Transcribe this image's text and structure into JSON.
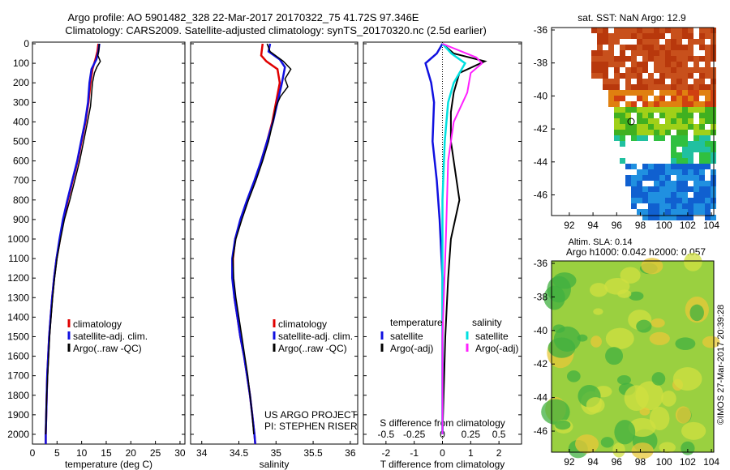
{
  "header": {
    "line1": "Argo profile: AO 5901482_328 22-Mar-2017 20170322_75 41.72S 97.346E",
    "line2": "Climatology: CARS2009. Satellite-adjusted climatology: synTS_20170320.nc (2.5d earlier)"
  },
  "colors": {
    "climatology": "#e00000",
    "satellite": "#1010e0",
    "argo": "#000000",
    "sal_satellite": "#00e0e0",
    "sal_argo": "#ff20ff"
  },
  "chart_data": [
    {
      "type": "line",
      "panel": "temperature",
      "xlabel": "temperature (deg C)",
      "xlim": [
        0,
        31
      ],
      "xticks": [
        "0",
        "5",
        "10",
        "15",
        "20",
        "25",
        "30"
      ],
      "ylim": [
        2050,
        0
      ],
      "yticks": [
        "0",
        "100",
        "200",
        "300",
        "400",
        "500",
        "600",
        "700",
        "800",
        "900",
        "1000",
        "1100",
        "1200",
        "1300",
        "1400",
        "1500",
        "1600",
        "1700",
        "1800",
        "1900",
        "2000"
      ],
      "legend": [
        "climatology",
        "satellite-adj. clim.",
        "Argo(..raw -QC)"
      ],
      "series": [
        {
          "name": "climatology",
          "points": [
            [
              13.4,
              0
            ],
            [
              13.2,
              40
            ],
            [
              12.8,
              80
            ],
            [
              12.2,
              130
            ],
            [
              11.8,
              200
            ],
            [
              11.4,
              300
            ],
            [
              10.8,
              400
            ],
            [
              10.0,
              500
            ],
            [
              9.2,
              600
            ],
            [
              8.2,
              700
            ],
            [
              7.2,
              800
            ],
            [
              6.3,
              900
            ],
            [
              5.6,
              1000
            ],
            [
              4.9,
              1100
            ],
            [
              4.4,
              1200
            ],
            [
              4.0,
              1300
            ],
            [
              3.7,
              1400
            ],
            [
              3.4,
              1500
            ],
            [
              3.2,
              1600
            ],
            [
              3.0,
              1700
            ],
            [
              2.9,
              1800
            ],
            [
              2.8,
              1900
            ],
            [
              2.7,
              2000
            ],
            [
              2.7,
              2050
            ]
          ]
        },
        {
          "name": "satellite-adj. clim.",
          "points": [
            [
              13.6,
              0
            ],
            [
              13.4,
              40
            ],
            [
              13.0,
              80
            ],
            [
              12.0,
              130
            ],
            [
              11.6,
              200
            ],
            [
              11.3,
              300
            ],
            [
              10.7,
              400
            ],
            [
              9.9,
              500
            ],
            [
              9.1,
              600
            ],
            [
              8.1,
              700
            ],
            [
              7.1,
              800
            ],
            [
              6.2,
              900
            ],
            [
              5.5,
              1000
            ],
            [
              4.9,
              1100
            ],
            [
              4.4,
              1200
            ],
            [
              4.0,
              1300
            ],
            [
              3.7,
              1400
            ],
            [
              3.4,
              1500
            ],
            [
              3.2,
              1600
            ],
            [
              3.0,
              1700
            ],
            [
              2.9,
              1800
            ],
            [
              2.8,
              1900
            ],
            [
              2.7,
              2000
            ],
            [
              2.7,
              2050
            ]
          ]
        },
        {
          "name": "Argo(..raw -QC)",
          "points": [
            [
              13.6,
              0
            ],
            [
              13.5,
              30
            ],
            [
              13.3,
              60
            ],
            [
              13.8,
              90
            ],
            [
              13.1,
              120
            ],
            [
              12.6,
              150
            ],
            [
              12.2,
              200
            ],
            [
              12.0,
              260
            ],
            [
              11.8,
              320
            ],
            [
              11.2,
              400
            ],
            [
              10.4,
              500
            ],
            [
              9.6,
              600
            ],
            [
              8.6,
              700
            ],
            [
              7.6,
              800
            ],
            [
              6.5,
              900
            ],
            [
              5.7,
              1000
            ],
            [
              5.0,
              1100
            ],
            [
              4.5,
              1200
            ],
            [
              4.1,
              1300
            ],
            [
              3.8,
              1400
            ],
            [
              3.5,
              1500
            ],
            [
              3.3,
              1600
            ],
            [
              3.1,
              1700
            ],
            [
              2.9,
              1800
            ],
            [
              2.8,
              1900
            ],
            [
              2.7,
              2000
            ]
          ]
        }
      ]
    },
    {
      "type": "line",
      "panel": "salinity",
      "xlabel": "salinity",
      "xlim": [
        33.85,
        36.1
      ],
      "xticks": [
        "34",
        "34.5",
        "35",
        "35.5",
        "36"
      ],
      "ylim": [
        2050,
        0
      ],
      "legend": [
        "climatology",
        "satellite-adj. clim.",
        "Argo(..raw -QC)"
      ],
      "annotation": [
        "US ARGO PROJECT",
        "PI: STEPHEN RISER"
      ],
      "series": [
        {
          "name": "climatology",
          "points": [
            [
              34.82,
              0
            ],
            [
              34.8,
              60
            ],
            [
              34.87,
              90
            ],
            [
              35.02,
              130
            ],
            [
              35.05,
              200
            ],
            [
              35.0,
              300
            ],
            [
              34.95,
              400
            ],
            [
              34.88,
              500
            ],
            [
              34.8,
              600
            ],
            [
              34.72,
              700
            ],
            [
              34.62,
              800
            ],
            [
              34.53,
              900
            ],
            [
              34.45,
              1000
            ],
            [
              34.42,
              1100
            ],
            [
              34.42,
              1200
            ],
            [
              34.44,
              1300
            ],
            [
              34.48,
              1400
            ],
            [
              34.52,
              1500
            ],
            [
              34.57,
              1600
            ],
            [
              34.61,
              1700
            ],
            [
              34.65,
              1800
            ],
            [
              34.68,
              1900
            ],
            [
              34.71,
              2000
            ],
            [
              34.72,
              2050
            ]
          ]
        },
        {
          "name": "satellite-adj. clim.",
          "points": [
            [
              34.92,
              0
            ],
            [
              34.9,
              40
            ],
            [
              35.05,
              80
            ],
            [
              35.12,
              120
            ],
            [
              35.08,
              200
            ],
            [
              35.02,
              300
            ],
            [
              34.96,
              400
            ],
            [
              34.88,
              500
            ],
            [
              34.8,
              600
            ],
            [
              34.71,
              700
            ],
            [
              34.61,
              800
            ],
            [
              34.52,
              900
            ],
            [
              34.45,
              1000
            ],
            [
              34.41,
              1100
            ],
            [
              34.41,
              1200
            ],
            [
              34.44,
              1300
            ],
            [
              34.48,
              1400
            ],
            [
              34.52,
              1500
            ],
            [
              34.57,
              1600
            ],
            [
              34.61,
              1700
            ],
            [
              34.65,
              1800
            ],
            [
              34.68,
              1900
            ],
            [
              34.71,
              2000
            ],
            [
              34.72,
              2050
            ]
          ]
        },
        {
          "name": "Argo(..raw -QC)",
          "points": [
            [
              34.88,
              0
            ],
            [
              34.92,
              40
            ],
            [
              35.1,
              90
            ],
            [
              35.2,
              130
            ],
            [
              35.12,
              180
            ],
            [
              35.16,
              220
            ],
            [
              35.06,
              270
            ],
            [
              35.0,
              320
            ],
            [
              34.96,
              400
            ],
            [
              34.9,
              500
            ],
            [
              34.82,
              600
            ],
            [
              34.73,
              700
            ],
            [
              34.63,
              800
            ],
            [
              34.54,
              900
            ],
            [
              34.46,
              1000
            ],
            [
              34.42,
              1100
            ],
            [
              34.43,
              1200
            ],
            [
              34.46,
              1300
            ],
            [
              34.5,
              1400
            ],
            [
              34.54,
              1500
            ],
            [
              34.58,
              1600
            ],
            [
              34.62,
              1700
            ],
            [
              34.65,
              1800
            ],
            [
              34.68,
              1900
            ],
            [
              34.7,
              2000
            ]
          ]
        }
      ]
    },
    {
      "type": "line",
      "panel": "difference",
      "xlabel": "T difference from climatology",
      "xlabel_top": "S difference from climatology",
      "xlim": [
        -2.8,
        2.8
      ],
      "xticks": [
        "-2",
        "-1",
        "0",
        "1",
        "2"
      ],
      "sticks": [
        "-0.5",
        "-0.25",
        "0",
        "0.25",
        "0.5"
      ],
      "ylim": [
        2050,
        0
      ],
      "legend_headers": [
        "temperature",
        "salinity"
      ],
      "legend": [
        "satellite",
        "Argo(-adj)",
        "satellite",
        "Argo(-adj)"
      ],
      "series": [
        {
          "name": "satellite",
          "group": "temperature",
          "points": [
            [
              0,
              0
            ],
            [
              -0.2,
              50
            ],
            [
              -0.6,
              100
            ],
            [
              -0.4,
              200
            ],
            [
              -0.3,
              300
            ],
            [
              -0.35,
              500
            ],
            [
              -0.2,
              700
            ],
            [
              -0.1,
              900
            ],
            [
              0,
              1200
            ],
            [
              0,
              2000
            ]
          ]
        },
        {
          "name": "Argo(-adj)",
          "group": "temperature",
          "points": [
            [
              0,
              0
            ],
            [
              0.4,
              50
            ],
            [
              1.5,
              90
            ],
            [
              0.6,
              150
            ],
            [
              0.4,
              250
            ],
            [
              0.3,
              350
            ],
            [
              0.3,
              500
            ],
            [
              0.6,
              800
            ],
            [
              0.3,
              1000
            ],
            [
              0.2,
              1200
            ],
            [
              0.1,
              1500
            ],
            [
              0,
              2000
            ]
          ]
        },
        {
          "name": "satellite",
          "group": "salinity",
          "points": [
            [
              0,
              0
            ],
            [
              0.08,
              50
            ],
            [
              0.2,
              100
            ],
            [
              0.1,
              200
            ],
            [
              0.05,
              300
            ],
            [
              0.02,
              500
            ],
            [
              0,
              800
            ],
            [
              0,
              1200
            ],
            [
              0,
              2000
            ]
          ]
        },
        {
          "name": "Argo(-adj)",
          "group": "salinity",
          "points": [
            [
              0,
              0
            ],
            [
              0.3,
              70
            ],
            [
              0.35,
              100
            ],
            [
              0.25,
              150
            ],
            [
              0.22,
              250
            ],
            [
              0.1,
              400
            ],
            [
              0.05,
              600
            ],
            [
              0.03,
              1000
            ],
            [
              0,
              1500
            ],
            [
              0,
              2000
            ]
          ]
        }
      ]
    },
    {
      "type": "heatmap",
      "panel": "sst_map",
      "title": "sat. SST: NaN Argo: 12.9",
      "xticks": [
        "92",
        "94",
        "96",
        "98",
        "100",
        "102",
        "104"
      ],
      "yticks": [
        "-36",
        "-38",
        "-40",
        "-42",
        "-44",
        "-46"
      ]
    },
    {
      "type": "heatmap",
      "panel": "sla_map",
      "title_lines": [
        "Altim. SLA: 0.14",
        "Argo h1000: 0.042 h2000: 0.057"
      ],
      "xticks": [
        "92",
        "94",
        "96",
        "98",
        "100",
        "102",
        "104"
      ],
      "yticks": [
        "-36",
        "-38",
        "-40",
        "-42",
        "-44",
        "-46"
      ],
      "side_label": "©IMOS 27-Mar-2017 20:39:28"
    }
  ]
}
